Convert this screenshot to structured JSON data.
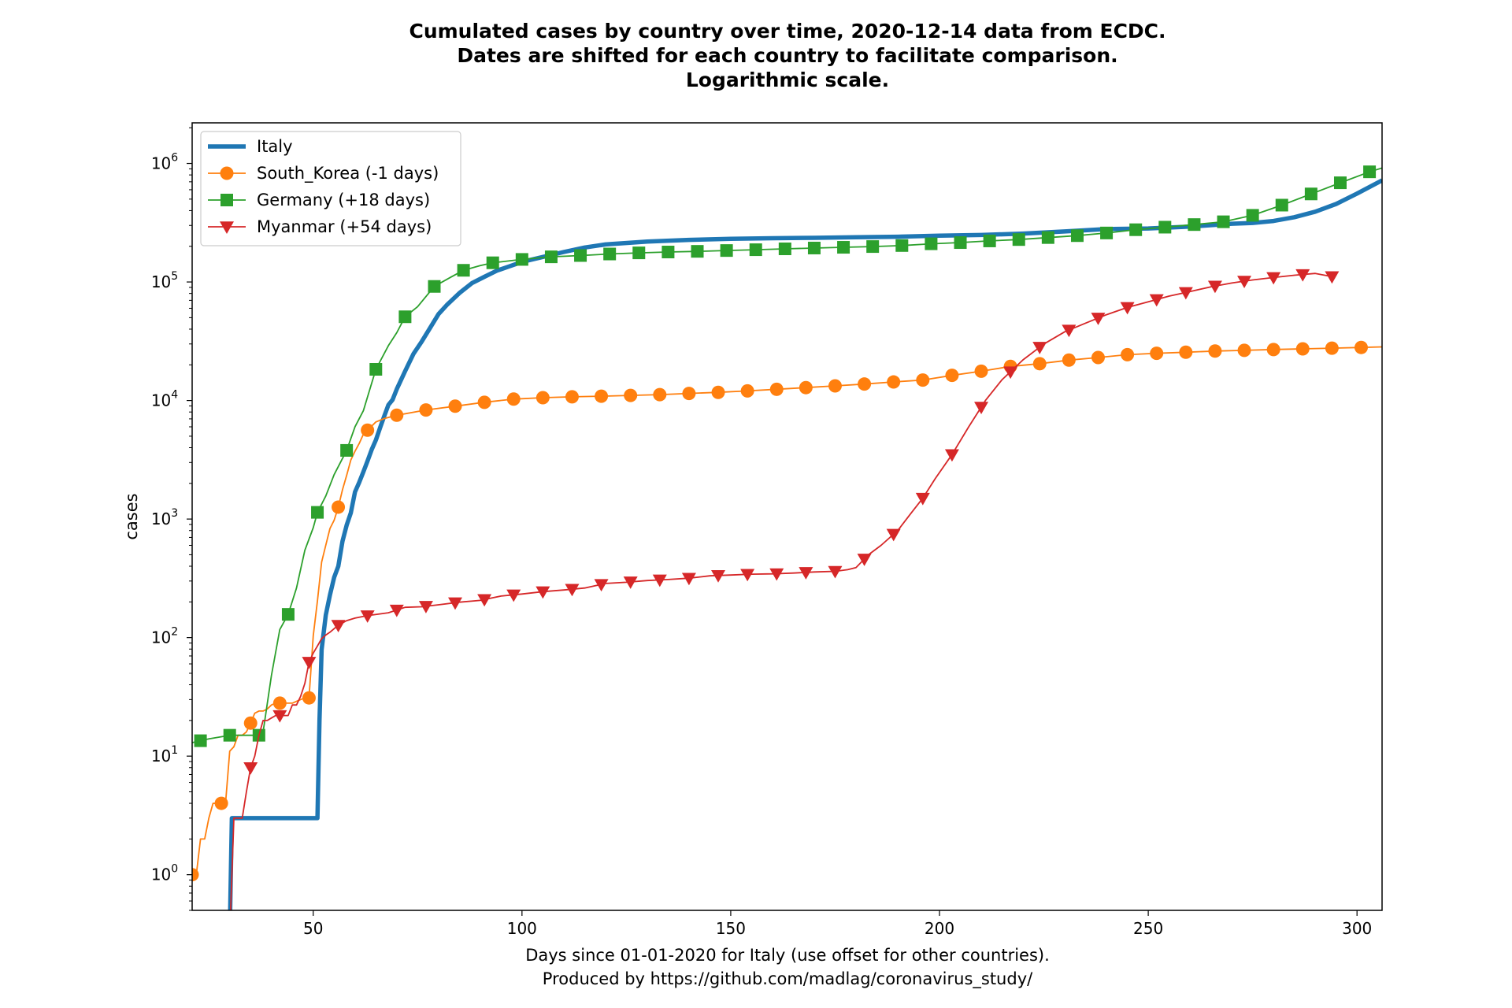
{
  "chart_data": {
    "type": "line",
    "yscale": "log",
    "title": [
      "Cumulated cases by country over time, 2020-12-14 data from ECDC.",
      "Dates are shifted for each country to facilitate comparison.",
      "Logarithmic scale."
    ],
    "xlabel": [
      "Days since 01-01-2020 for Italy (use offset for other countries).",
      "Produced by https://github.com/madlag/coronavirus_study/"
    ],
    "ylabel": "cases",
    "xlim": [
      21,
      306
    ],
    "ylim": [
      0.5,
      2200000
    ],
    "xticks": [
      50,
      100,
      150,
      200,
      250,
      300
    ],
    "yticks": [
      {
        "value": 1,
        "base": "10",
        "exp": "0"
      },
      {
        "value": 10,
        "base": "10",
        "exp": "1"
      },
      {
        "value": 100,
        "base": "10",
        "exp": "2"
      },
      {
        "value": 1000,
        "base": "10",
        "exp": "3"
      },
      {
        "value": 10000,
        "base": "10",
        "exp": "4"
      },
      {
        "value": 100000,
        "base": "10",
        "exp": "5"
      },
      {
        "value": 1000000,
        "base": "10",
        "exp": "6"
      }
    ],
    "legend_position": "upper-left",
    "series": [
      {
        "name": "Italy",
        "color": "#1f77b4",
        "marker": "none",
        "linewidth": 5.5,
        "x": [
          30,
          30.5,
          31,
          35,
          40,
          45,
          50,
          51,
          51.5,
          52,
          53,
          54,
          55,
          56,
          57,
          58,
          59,
          60,
          61,
          62,
          63,
          64,
          65,
          66,
          67,
          68,
          69,
          70,
          72,
          74,
          76,
          78,
          80,
          82,
          85,
          88,
          91,
          94,
          97,
          100,
          105,
          110,
          115,
          120,
          130,
          140,
          150,
          160,
          170,
          180,
          190,
          200,
          210,
          220,
          230,
          240,
          250,
          260,
          270,
          275,
          280,
          285,
          290,
          295,
          300,
          306
        ],
        "y": [
          0.3,
          3,
          3,
          3,
          3,
          3,
          3,
          3,
          20,
          79,
          155,
          229,
          322,
          400,
          650,
          888,
          1128,
          1694,
          2036,
          2502,
          3089,
          3858,
          4636,
          5883,
          7375,
          9172,
          10149,
          12462,
          17660,
          24747,
          31506,
          41035,
          53578,
          63927,
          80539,
          97689,
          110574,
          124632,
          135586,
          147577,
          162488,
          178972,
          195351,
          207428,
          219070,
          226699,
          231139,
          234013,
          235763,
          238159,
          240961,
          245864,
          249204,
          256118,
          266853,
          279497,
          283012,
          293000,
          310000,
          315000,
          327000,
          352000,
          392000,
          455000,
          557000,
          720000
        ]
      },
      {
        "name": "South_Korea (-1 days)",
        "color": "#ff7f0e",
        "marker": "circle",
        "linewidth": 1.8,
        "x": [
          21,
          22,
          23,
          24,
          25,
          26,
          27,
          28,
          29,
          30,
          31,
          32,
          33,
          34,
          35,
          36,
          37,
          38,
          39,
          40,
          41,
          42,
          43,
          44,
          45,
          46,
          47,
          48,
          49,
          50,
          51,
          52,
          53,
          54,
          55,
          56,
          57,
          58,
          59,
          60,
          61,
          62,
          63,
          65,
          67,
          70,
          77,
          84,
          91,
          98,
          105,
          112,
          119,
          126,
          133,
          140,
          147,
          154,
          161,
          168,
          175,
          182,
          189,
          196,
          203,
          210,
          217,
          224,
          231,
          238,
          245,
          252,
          259,
          266,
          273,
          280,
          287,
          294,
          301,
          306
        ],
        "y": [
          1,
          1,
          2,
          2,
          3,
          4,
          4,
          4,
          4,
          11,
          12,
          15,
          15,
          16,
          19,
          23,
          24,
          24,
          25,
          27,
          28,
          28,
          28,
          28,
          28,
          29,
          30,
          31,
          31,
          104,
          204,
          433,
          602,
          833,
          977,
          1261,
          1766,
          2337,
          3150,
          3736,
          4335,
          5186,
          5621,
          6593,
          7041,
          7513,
          8320,
          8961,
          9661,
          10284,
          10564,
          10752,
          10874,
          11037,
          11206,
          11468,
          11719,
          12051,
          12438,
          12850,
          13293,
          13771,
          14336,
          14873,
          16297,
          17665,
          19400,
          20449,
          21919,
          23045,
          24353,
          25035,
          25543,
          26146,
          26511,
          26925,
          27284,
          27653,
          28036,
          28338
        ]
      },
      {
        "name": "Germany (+18 days)",
        "color": "#2ca02c",
        "marker": "square",
        "linewidth": 1.8,
        "x": [
          21,
          25,
          30,
          35,
          37,
          38,
          40,
          42,
          44,
          46,
          48,
          50,
          51,
          53,
          55,
          58,
          60,
          62,
          65,
          68,
          70,
          72,
          75,
          79,
          83,
          86,
          90,
          93,
          100,
          107,
          114,
          121,
          128,
          135,
          142,
          149,
          156,
          163,
          170,
          177,
          184,
          191,
          198,
          205,
          212,
          219,
          226,
          233,
          240,
          247,
          254,
          261,
          268,
          275,
          282,
          289,
          296,
          303,
          306
        ],
        "y": [
          13,
          14,
          15,
          15,
          15,
          16,
          48,
          117,
          157,
          262,
          545,
          847,
          1139,
          1565,
          2369,
          3795,
          6012,
          8198,
          18323,
          29056,
          37323,
          50871,
          61913,
          91714,
          110000,
          125452,
          137439,
          145184,
          154999,
          163009,
          167182,
          172239,
          176007,
          179002,
          181288,
          184193,
          187184,
          190359,
          193371,
          196096,
          199000,
          203000,
          210000,
          215000,
          222000,
          228000,
          237000,
          246000,
          259000,
          276000,
          290000,
          305000,
          322000,
          365000,
          445000,
          553000,
          687000,
          850000,
          915000
        ]
      },
      {
        "name": "Myanmar (+54 days)",
        "color": "#d62728",
        "marker": "triangle-down",
        "linewidth": 1.8,
        "x": [
          30,
          31,
          32,
          33,
          34,
          35,
          36,
          37,
          38,
          39,
          40,
          41,
          42,
          43,
          44,
          45,
          46,
          47,
          48,
          49,
          50,
          51,
          52,
          53,
          54,
          55,
          56,
          58,
          60,
          62,
          64,
          68,
          72,
          76,
          80,
          85,
          90,
          95,
          100,
          105,
          110,
          115,
          120,
          125,
          130,
          135,
          140,
          145,
          150,
          155,
          160,
          165,
          170,
          175,
          178,
          180,
          183,
          186,
          190,
          193,
          196,
          199,
          203,
          207,
          211,
          215,
          220,
          225,
          230,
          235,
          240,
          245,
          250,
          255,
          260,
          265,
          270,
          275,
          280,
          285,
          290,
          294
        ],
        "y": [
          0.3,
          3,
          3,
          3,
          5,
          8,
          10,
          15,
          20,
          20,
          21,
          22,
          22,
          22,
          22,
          27,
          27,
          32,
          41,
          62,
          74,
          85,
          98,
          105,
          111,
          119,
          127,
          139,
          146,
          151,
          155,
          162,
          180,
          182,
          189,
          199,
          206,
          224,
          233,
          244,
          252,
          262,
          286,
          293,
          303,
          309,
          317,
          332,
          337,
          343,
          345,
          350,
          358,
          362,
          374,
          390,
          500,
          600,
          800,
          1100,
          1500,
          2200,
          3500,
          6000,
          10000,
          15000,
          22000,
          30000,
          38000,
          45000,
          53000,
          61000,
          68000,
          76000,
          83000,
          91000,
          98000,
          104000,
          109000,
          114000,
          118000,
          111000
        ]
      }
    ]
  }
}
